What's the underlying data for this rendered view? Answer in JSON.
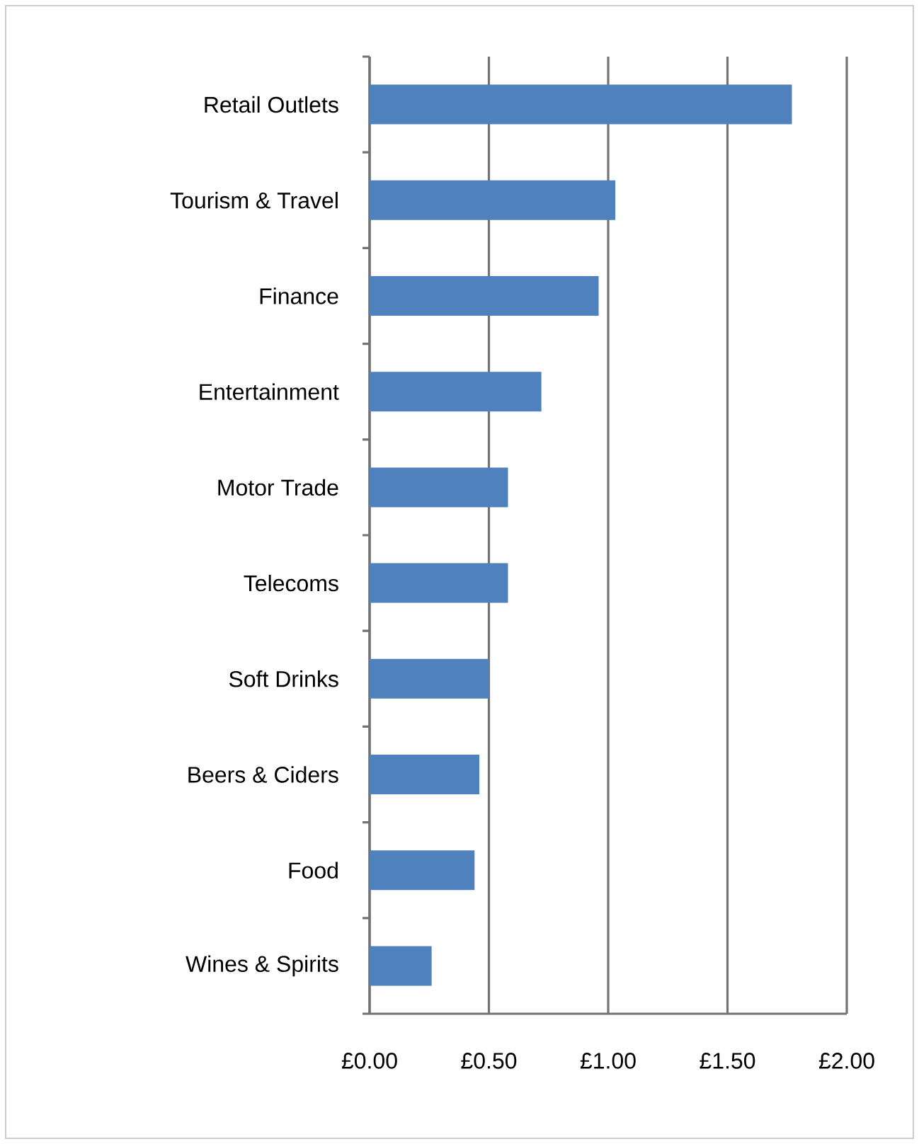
{
  "chart_data": {
    "type": "bar",
    "orientation": "horizontal",
    "categories": [
      "Retail Outlets",
      "Tourism & Travel",
      "Finance",
      "Entertainment",
      "Motor Trade",
      "Telecoms",
      "Soft Drinks",
      "Beers & Ciders",
      "Food",
      "Wines & Spirits"
    ],
    "values": [
      1.77,
      1.03,
      0.96,
      0.72,
      0.58,
      0.58,
      0.5,
      0.46,
      0.44,
      0.26
    ],
    "color": "#4f81bd",
    "xlim": [
      0,
      2
    ],
    "xticks": [
      {
        "value": 0,
        "label": "£0.00"
      },
      {
        "value": 0.5,
        "label": "£0.50"
      },
      {
        "value": 1,
        "label": "£1.00"
      },
      {
        "value": 1.5,
        "label": "£1.50"
      },
      {
        "value": 2,
        "label": "£2.00"
      }
    ],
    "grid": "x"
  }
}
